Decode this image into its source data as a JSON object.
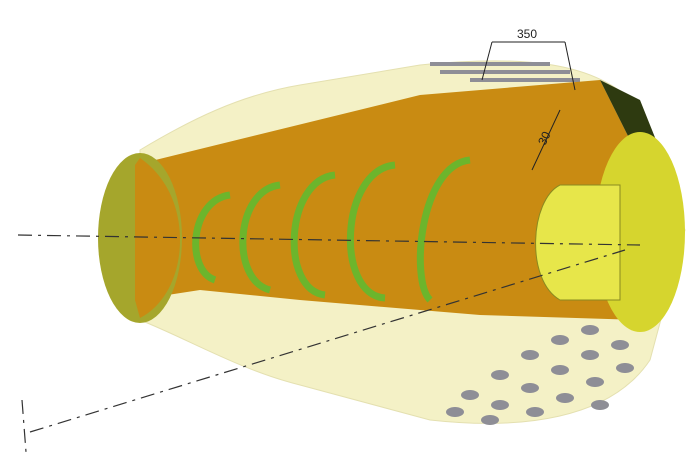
{
  "dimensions": [
    {
      "label": "350"
    },
    {
      "label": "30"
    }
  ]
}
